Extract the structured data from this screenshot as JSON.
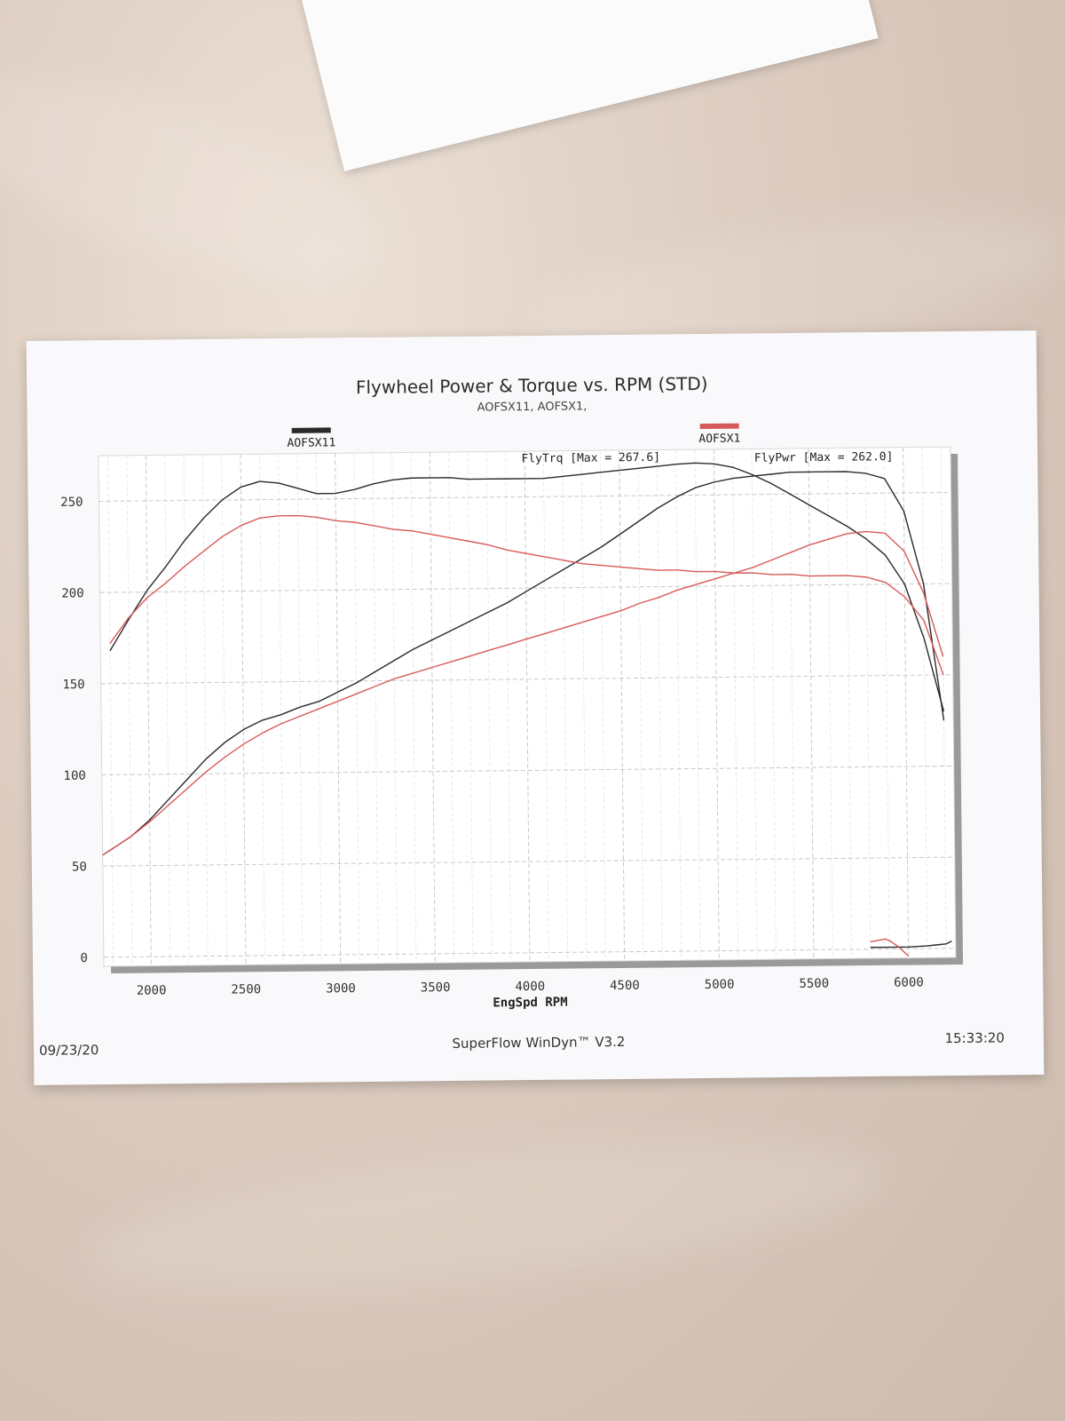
{
  "photo": {
    "background_color": "#dccbbf"
  },
  "document": {
    "date": "09/23/20",
    "software": "SuperFlow WinDyn™ V3.2",
    "time": "15:33:20"
  },
  "chart_data": {
    "type": "line",
    "title": "Flywheel Power & Torque vs. RPM (STD)",
    "subtitle": "AOFSX11, AOFSX1,",
    "xlabel": "EngSpd RPM",
    "ylabel": "",
    "xlim": [
      1750,
      6250
    ],
    "ylim": [
      -5,
      275
    ],
    "x_ticks": [
      2000,
      2500,
      3000,
      3500,
      4000,
      4500,
      5000,
      5500,
      6000
    ],
    "y_ticks": [
      0,
      50,
      100,
      150,
      200,
      250
    ],
    "grid": true,
    "legend": [
      {
        "name": "AOFSX11",
        "color": "#2a2a2a",
        "placement": "top-left"
      },
      {
        "name": "AOFSX1",
        "color": "#d75a5a",
        "placement": "top-right"
      }
    ],
    "annotations": [
      {
        "text": "FlyTrq [Max = 267.6]",
        "x": 4350,
        "y": 269
      },
      {
        "text": "FlyPwr [Max = 262.0]",
        "x": 5580,
        "y": 268
      }
    ],
    "series": [
      {
        "name": "AOFSX11",
        "measure": "FlyTrq",
        "color": "#2a2a2a",
        "x": [
          1800,
          1900,
          2000,
          2100,
          2200,
          2300,
          2400,
          2500,
          2600,
          2700,
          2800,
          2900,
          3000,
          3100,
          3200,
          3300,
          3400,
          3500,
          3600,
          3700,
          3800,
          3900,
          4000,
          4100,
          4200,
          4300,
          4400,
          4500,
          4600,
          4700,
          4800,
          4900,
          5000,
          5100,
          5200,
          5300,
          5400,
          5500,
          5600,
          5700,
          5800,
          5900,
          6000,
          6100,
          6200
        ],
        "values": [
          168,
          185,
          201,
          214,
          228,
          240,
          250,
          257,
          260,
          259,
          256,
          253,
          253,
          255,
          258,
          260,
          261,
          261,
          261,
          260,
          260,
          260,
          260,
          260,
          261,
          262,
          263,
          264,
          265,
          266,
          267,
          267.6,
          267,
          265,
          261,
          256,
          250,
          244,
          238,
          232,
          225,
          216,
          200,
          170,
          130
        ]
      },
      {
        "name": "AOFSX11",
        "measure": "FlyPwr",
        "color": "#2a2a2a",
        "x": [
          1750,
          1900,
          2000,
          2100,
          2200,
          2300,
          2400,
          2500,
          2600,
          2700,
          2800,
          2900,
          3000,
          3100,
          3200,
          3300,
          3400,
          3500,
          3600,
          3700,
          3800,
          3900,
          4000,
          4100,
          4200,
          4300,
          4400,
          4500,
          4600,
          4700,
          4800,
          4900,
          5000,
          5100,
          5200,
          5300,
          5400,
          5500,
          5600,
          5700,
          5800,
          5900,
          6000,
          6100,
          6200
        ],
        "values": [
          56,
          66,
          75,
          86,
          97,
          108,
          117,
          124,
          129,
          132,
          136,
          139,
          144,
          149,
          155,
          161,
          167,
          172,
          177,
          182,
          187,
          192,
          198,
          204,
          210,
          216,
          222,
          229,
          236,
          243,
          249,
          254,
          257,
          259,
          260,
          261,
          262,
          262,
          262,
          262,
          261,
          258,
          240,
          200,
          125
        ]
      },
      {
        "name": "AOFSX1",
        "measure": "FlyTrq",
        "color": "#d75a5a",
        "x": [
          1800,
          1900,
          2000,
          2100,
          2200,
          2300,
          2400,
          2500,
          2600,
          2700,
          2800,
          2900,
          3000,
          3100,
          3200,
          3300,
          3400,
          3500,
          3600,
          3700,
          3800,
          3900,
          4000,
          4100,
          4200,
          4300,
          4400,
          4500,
          4600,
          4700,
          4800,
          4900,
          5000,
          5100,
          5200,
          5300,
          5400,
          5500,
          5600,
          5700,
          5800,
          5900,
          6000,
          6100,
          6200
        ],
        "values": [
          172,
          186,
          197,
          205,
          214,
          222,
          230,
          236,
          240,
          241,
          241,
          240,
          238,
          237,
          235,
          233,
          232,
          230,
          228,
          226,
          224,
          221,
          219,
          217,
          215,
          213,
          212,
          211,
          210,
          209,
          209,
          208,
          208,
          207,
          207,
          206,
          206,
          205,
          205,
          205,
          204,
          201,
          193,
          180,
          150
        ]
      },
      {
        "name": "AOFSX1",
        "measure": "FlyPwr",
        "color": "#d75a5a",
        "x": [
          1750,
          1900,
          2000,
          2100,
          2200,
          2300,
          2400,
          2500,
          2600,
          2700,
          2800,
          2900,
          3000,
          3100,
          3200,
          3300,
          3400,
          3500,
          3600,
          3700,
          3800,
          3900,
          4000,
          4100,
          4200,
          4300,
          4400,
          4500,
          4600,
          4700,
          4800,
          4900,
          5000,
          5100,
          5200,
          5300,
          5400,
          5500,
          5600,
          5700,
          5800,
          5900,
          6000,
          6100,
          6200
        ],
        "values": [
          56,
          66,
          74,
          83,
          92,
          101,
          109,
          116,
          122,
          127,
          131,
          135,
          139,
          143,
          147,
          151,
          154,
          157,
          160,
          163,
          166,
          169,
          172,
          175,
          178,
          181,
          184,
          187,
          191,
          194,
          198,
          201,
          204,
          207,
          210,
          214,
          218,
          222,
          225,
          228,
          229,
          228,
          218,
          195,
          160
        ]
      },
      {
        "name": "AOFSX11",
        "measure": "tail",
        "color": "#2a2a2a",
        "x": [
          5800,
          5900,
          6000,
          6100,
          6150,
          6200,
          6230
        ],
        "values": [
          1,
          1,
          1,
          1.5,
          2,
          2.5,
          4
        ]
      },
      {
        "name": "AOFSX1",
        "measure": "tail",
        "color": "#d75a5a",
        "x": [
          5800,
          5850,
          5880,
          5910,
          5950,
          6000
        ],
        "values": [
          4,
          5,
          5.5,
          4,
          1,
          -4
        ]
      }
    ]
  }
}
